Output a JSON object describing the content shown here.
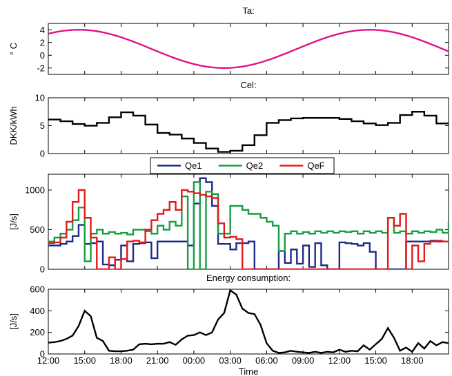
{
  "chart_data": [
    {
      "type": "line",
      "title": "Ta:",
      "xlabel": "",
      "ylabel": "° C",
      "xlim": [
        0,
        33
      ],
      "ylim": [
        -3,
        5
      ],
      "yticks": [
        -2,
        0,
        2,
        4
      ],
      "xticks": [
        0,
        3,
        6,
        9,
        12,
        15,
        18,
        21,
        24,
        27,
        30
      ],
      "grid": false,
      "series": [
        {
          "color": "#e0118a",
          "function": "sin",
          "mean": 1.0,
          "amplitude": 3.0,
          "period_hours": 24,
          "peak_at_hours": 2.5,
          "x": [
            0,
            1,
            2,
            2.5,
            3,
            4,
            5,
            6,
            7,
            8,
            8.5,
            9,
            10,
            11,
            12,
            13,
            14,
            14.5,
            15,
            16,
            17,
            18,
            19,
            20,
            20.5,
            21,
            22,
            23,
            24,
            25,
            26,
            26.5,
            27,
            28,
            29,
            30,
            31,
            32,
            32.5,
            33
          ],
          "values": [
            3.6,
            3.9,
            4.0,
            4.0,
            4.0,
            3.6,
            3.1,
            2.5,
            1.8,
            1.1,
            1.0,
            0.2,
            -0.5,
            -1.1,
            -1.6,
            -1.9,
            -2.0,
            -2.0,
            -2.0,
            -1.6,
            -1.1,
            -0.5,
            0.2,
            0.9,
            1.0,
            1.8,
            2.5,
            3.1,
            3.6,
            3.9,
            4.0,
            4.0,
            4.0,
            3.6,
            3.1,
            2.5,
            1.8,
            1.1,
            1.0,
            0.7
          ]
        }
      ]
    },
    {
      "type": "line",
      "title": "Cel:",
      "xlabel": "",
      "ylabel": "DKK/kWh",
      "xlim": [
        0,
        33
      ],
      "ylim": [
        0,
        10
      ],
      "yticks": [
        0,
        5,
        10
      ],
      "xticks": [
        0,
        3,
        6,
        9,
        12,
        15,
        18,
        21,
        24,
        27,
        30
      ],
      "grid": false,
      "step": true,
      "series": [
        {
          "color": "#000000",
          "x": [
            0,
            1,
            2,
            3,
            4,
            5,
            6,
            7,
            8,
            9,
            10,
            11,
            12,
            13,
            14,
            15,
            16,
            17,
            18,
            19,
            20,
            21,
            22,
            23,
            24,
            25,
            26,
            27,
            28,
            29,
            30,
            31,
            32,
            33
          ],
          "values": [
            6.1,
            5.8,
            5.3,
            5.0,
            5.5,
            6.5,
            7.4,
            6.8,
            5.2,
            3.7,
            3.4,
            2.7,
            1.9,
            0.9,
            0.3,
            0.5,
            1.5,
            3.3,
            5.5,
            6.0,
            6.3,
            6.4,
            6.4,
            6.4,
            6.2,
            5.8,
            5.4,
            5.1,
            5.5,
            6.9,
            7.5,
            6.8,
            5.4,
            5.4
          ]
        }
      ]
    },
    {
      "type": "line",
      "title": "",
      "xlabel": "",
      "ylabel": "[J/s]",
      "xlim": [
        0,
        33
      ],
      "ylim": [
        0,
        1200
      ],
      "yticks": [
        0,
        500,
        1000
      ],
      "xticks": [
        0,
        3,
        6,
        9,
        12,
        15,
        18,
        21,
        24,
        27,
        30
      ],
      "grid": false,
      "step": true,
      "legend": "top-center",
      "series": [
        {
          "name": "Qe1",
          "color": "#1f2a8a",
          "x": [
            0,
            0.5,
            1,
            1.5,
            2,
            2.5,
            3,
            3.5,
            4,
            4.5,
            5,
            5.5,
            6,
            6.5,
            7,
            7.5,
            8,
            8.5,
            9,
            9.5,
            10,
            10.5,
            11,
            11.5,
            12,
            12.5,
            13,
            13.5,
            14,
            14.5,
            15,
            15.5,
            16,
            16.5,
            17,
            17.5,
            18,
            18.5,
            19,
            19.5,
            20,
            20.5,
            21,
            21.5,
            22,
            22.5,
            23,
            23.5,
            24,
            24.5,
            25,
            25.5,
            26,
            26.5,
            27,
            27.5,
            28,
            28.5,
            29,
            29.5,
            30,
            30.5,
            31,
            31.5,
            32,
            32.5,
            33
          ],
          "values": [
            300,
            300,
            320,
            350,
            420,
            560,
            320,
            330,
            350,
            60,
            50,
            120,
            300,
            100,
            320,
            330,
            340,
            140,
            350,
            350,
            350,
            350,
            350,
            300,
            830,
            1150,
            1100,
            800,
            320,
            320,
            250,
            330,
            330,
            350,
            0,
            0,
            0,
            0,
            230,
            80,
            250,
            70,
            300,
            30,
            330,
            50,
            0,
            0,
            340,
            330,
            320,
            300,
            330,
            220,
            0,
            0,
            0,
            0,
            0,
            350,
            350,
            350,
            350,
            360,
            350,
            350,
            350
          ]
        },
        {
          "name": "Qe2",
          "color": "#14a040",
          "x": [
            0,
            0.5,
            1,
            1.5,
            2,
            2.5,
            3,
            3.5,
            4,
            4.5,
            5,
            5.5,
            6,
            6.5,
            7,
            7.5,
            8,
            8.5,
            9,
            9.5,
            10,
            10.5,
            11,
            11.5,
            12,
            12.5,
            13,
            13.5,
            14,
            14.5,
            15,
            15.5,
            16,
            16.5,
            17,
            17.5,
            18,
            18.5,
            19,
            19.5,
            20,
            20.5,
            21,
            21.5,
            22,
            22.5,
            23,
            23.5,
            24,
            24.5,
            25,
            25.5,
            26,
            26.5,
            27,
            27.5,
            28,
            28.5,
            29,
            29.5,
            30,
            30.5,
            31,
            31.5,
            32,
            32.5,
            33
          ],
          "values": [
            350,
            400,
            450,
            500,
            620,
            780,
            100,
            450,
            500,
            450,
            470,
            450,
            460,
            440,
            500,
            500,
            480,
            450,
            550,
            500,
            600,
            550,
            920,
            0,
            1100,
            0,
            980,
            950,
            450,
            450,
            800,
            800,
            750,
            700,
            700,
            650,
            600,
            550,
            230,
            450,
            480,
            450,
            470,
            450,
            480,
            460,
            480,
            460,
            480,
            470,
            480,
            450,
            480,
            460,
            480,
            460,
            650,
            460,
            480,
            450,
            480,
            460,
            480,
            470,
            500,
            460,
            600
          ]
        },
        {
          "name": "QeF",
          "color": "#e31a1c",
          "x": [
            0,
            0.5,
            1,
            1.5,
            2,
            2.5,
            3,
            3.5,
            4,
            4.5,
            5,
            5.5,
            6,
            6.5,
            7,
            7.5,
            8,
            8.5,
            9,
            9.5,
            10,
            10.5,
            11,
            11.5,
            12,
            12.5,
            13,
            13.5,
            14,
            14.5,
            15,
            15.5,
            16,
            16.5,
            17,
            17.5,
            18,
            18.5,
            19,
            19.5,
            20,
            20.5,
            21,
            21.5,
            22,
            22.5,
            23,
            23.5,
            24,
            24.5,
            25,
            25.5,
            26,
            26.5,
            27,
            27.5,
            28,
            28.5,
            29,
            29.5,
            30,
            30.5,
            31,
            31.5,
            32,
            32.5,
            33
          ],
          "values": [
            330,
            340,
            400,
            600,
            850,
            1000,
            650,
            400,
            0,
            0,
            150,
            0,
            130,
            350,
            360,
            340,
            500,
            620,
            700,
            750,
            850,
            750,
            1000,
            980,
            960,
            940,
            920,
            900,
            580,
            400,
            410,
            380,
            0,
            0,
            0,
            0,
            0,
            0,
            0,
            0,
            0,
            0,
            0,
            0,
            0,
            0,
            0,
            0,
            0,
            0,
            0,
            0,
            0,
            0,
            0,
            0,
            650,
            550,
            700,
            0,
            300,
            100,
            320,
            350,
            360,
            350,
            350
          ]
        }
      ]
    },
    {
      "type": "line",
      "title": "Energy consumption:",
      "xlabel": "Time",
      "ylabel": "[J/s]",
      "xlim": [
        0,
        33
      ],
      "ylim": [
        0,
        600
      ],
      "yticks": [
        0,
        200,
        400,
        600
      ],
      "xticks": [
        0,
        3,
        6,
        9,
        12,
        15,
        18,
        21,
        24,
        27,
        30
      ],
      "xtick_labels": [
        "12:00",
        "15:00",
        "18:00",
        "21:00",
        "00:00",
        "03:00",
        "06:00",
        "09:00",
        "12:00",
        "15:00",
        "18:00"
      ],
      "grid": false,
      "series": [
        {
          "color": "#000000",
          "x": [
            0,
            0.5,
            1,
            1.5,
            2,
            2.5,
            3,
            3.5,
            4,
            4.5,
            5,
            5.5,
            6,
            6.5,
            7,
            7.5,
            8,
            8.5,
            9,
            9.5,
            10,
            10.5,
            11,
            11.5,
            12,
            12.5,
            13,
            13.5,
            14,
            14.5,
            15,
            15.5,
            16,
            16.5,
            17,
            17.5,
            18,
            18.5,
            19,
            19.5,
            20,
            20.5,
            21,
            21.5,
            22,
            22.5,
            23,
            23.5,
            24,
            24.5,
            25,
            25.5,
            26,
            26.5,
            27,
            27.5,
            28,
            28.5,
            29,
            29.5,
            30,
            30.5,
            31,
            31.5,
            32,
            32.5,
            33
          ],
          "values": [
            105,
            110,
            120,
            140,
            170,
            260,
            400,
            350,
            150,
            120,
            30,
            25,
            25,
            30,
            40,
            90,
            95,
            90,
            95,
            95,
            110,
            85,
            135,
            170,
            175,
            200,
            175,
            200,
            320,
            380,
            590,
            550,
            420,
            380,
            370,
            270,
            100,
            30,
            10,
            15,
            30,
            20,
            15,
            10,
            20,
            10,
            20,
            15,
            40,
            20,
            30,
            25,
            80,
            40,
            90,
            140,
            240,
            150,
            30,
            60,
            20,
            100,
            50,
            120,
            80,
            110,
            100
          ]
        }
      ]
    }
  ]
}
